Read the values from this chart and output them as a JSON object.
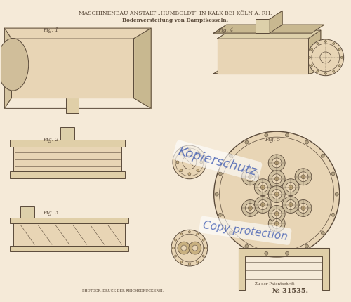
{
  "bg_color": "#f5ead8",
  "line_color": "#5a4a3a",
  "title1": "MASCHINENBAU-ANSTALT „HUMBOLDT“ IN KALK BEI KÖLN A. RH.",
  "title2": "Bodenversteifung von Dampfkesseln.",
  "fig_labels": [
    "Fig. 1",
    "Fig. 2",
    "Fig. 3",
    "Fig. 4",
    "Fig. 5"
  ],
  "bottom_text1": "PHOTOGR. DRUCK DER REICHSDRUCKEREI.",
  "bottom_text2": "Zu der Patentschrift",
  "bottom_num": "№ 31535.",
  "watermark1": "Kopierschutz",
  "watermark2": "Copy protection"
}
